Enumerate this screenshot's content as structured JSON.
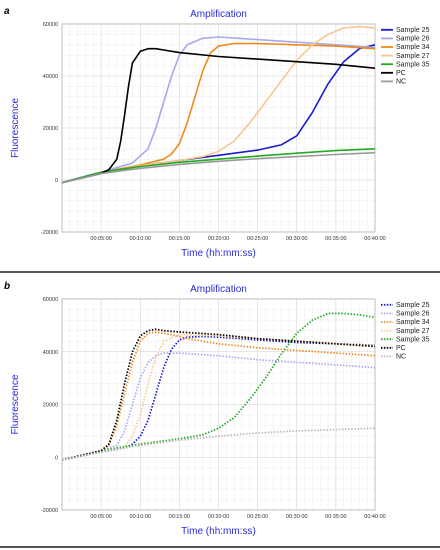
{
  "chart_data": [
    {
      "panel_label": "a",
      "type": "line",
      "title": "Amplification",
      "xlabel": "Time (hh:mm:ss)",
      "ylabel": "Fluorescence",
      "x_unit": "minutes",
      "xlim": [
        0,
        40
      ],
      "ylim": [
        -20000,
        60000
      ],
      "x_ticks": [
        "00:05:00",
        "00:10:00",
        "00:15:00",
        "00:20:00",
        "00:25:00",
        "00:30:00",
        "00:35:00",
        "00:40:00"
      ],
      "y_ticks": [
        "60000",
        "40000",
        "20000",
        "0",
        "-20000"
      ],
      "grid": true,
      "legend_position": "right",
      "line_style": "solid",
      "series": [
        {
          "name": "Sample 25",
          "color": "#1a1acc",
          "x": [
            0,
            5,
            10,
            15,
            20,
            25,
            28,
            30,
            32,
            34,
            36,
            38,
            40
          ],
          "y": [
            -1000,
            2500,
            5500,
            7500,
            9500,
            11500,
            13500,
            17000,
            26000,
            37000,
            45500,
            50500,
            52000
          ]
        },
        {
          "name": "Sample 26",
          "color": "#a8a8ee",
          "x": [
            0,
            5,
            9,
            11,
            12,
            13,
            14,
            15,
            16,
            18,
            20,
            25,
            30,
            35,
            40
          ],
          "y": [
            -1000,
            3000,
            6500,
            12000,
            20000,
            30000,
            40000,
            48000,
            52000,
            54500,
            55000,
            54000,
            53000,
            52000,
            51000
          ]
        },
        {
          "name": "Sample 34",
          "color": "#f08a1c",
          "x": [
            0,
            5,
            10,
            13,
            14,
            15,
            16,
            17,
            18,
            19,
            20,
            22,
            25,
            30,
            35,
            40
          ],
          "y": [
            -1000,
            2800,
            5800,
            8000,
            10000,
            14000,
            22000,
            32000,
            42000,
            49000,
            51500,
            52500,
            52500,
            52000,
            51500,
            50500
          ]
        },
        {
          "name": "Sample 27",
          "color": "#f8c890",
          "x": [
            0,
            5,
            10,
            15,
            18,
            20,
            22,
            24,
            26,
            28,
            30,
            32,
            34,
            36,
            38,
            40
          ],
          "y": [
            -1000,
            2500,
            5500,
            7500,
            9000,
            11000,
            15000,
            22000,
            30000,
            38000,
            46000,
            52000,
            56000,
            58500,
            59000,
            58500
          ]
        },
        {
          "name": "Sample 35",
          "color": "#22aa22",
          "x": [
            0,
            5,
            10,
            15,
            20,
            25,
            30,
            35,
            40
          ],
          "y": [
            -1000,
            3000,
            5200,
            6800,
            8000,
            9200,
            10300,
            11300,
            12000
          ]
        },
        {
          "name": "PC",
          "color": "#000000",
          "x": [
            0,
            5,
            6,
            7,
            7.5,
            8,
            8.5,
            9,
            10,
            11,
            12,
            13,
            15,
            20,
            25,
            30,
            35,
            40
          ],
          "y": [
            -1000,
            2500,
            4000,
            8000,
            15000,
            25000,
            36000,
            45000,
            49500,
            50500,
            50500,
            50000,
            49000,
            47500,
            46500,
            45500,
            44500,
            43000
          ]
        },
        {
          "name": "NC",
          "color": "#9a9a9a",
          "x": [
            0,
            5,
            10,
            15,
            20,
            25,
            30,
            35,
            40
          ],
          "y": [
            -1000,
            2500,
            4500,
            6000,
            7200,
            8200,
            9000,
            9800,
            10500
          ]
        }
      ]
    },
    {
      "panel_label": "b",
      "type": "line",
      "title": "Amplification",
      "xlabel": "Time (hh:mm:ss)",
      "ylabel": "Fluorescence",
      "x_unit": "minutes",
      "xlim": [
        0,
        40
      ],
      "ylim": [
        -20000,
        60000
      ],
      "x_ticks": [
        "00:05:00",
        "00:10:00",
        "00:15:00",
        "00:20:00",
        "00:25:00",
        "00:30:00",
        "00:35:00",
        "00:40:00"
      ],
      "y_ticks": [
        "60000",
        "40000",
        "20000",
        "0",
        "-20000"
      ],
      "grid": true,
      "legend_position": "right",
      "line_style": "dotted",
      "series": [
        {
          "name": "Sample 25",
          "color": "#1a1acc",
          "x": [
            0,
            5,
            8,
            9,
            10,
            11,
            12,
            13,
            14,
            15,
            16,
            18,
            20,
            25,
            30,
            35,
            40
          ],
          "y": [
            -1000,
            2000,
            3500,
            5000,
            8000,
            14000,
            24000,
            34000,
            41000,
            44500,
            45500,
            45800,
            45500,
            44500,
            43500,
            43000,
            42500
          ]
        },
        {
          "name": "Sample 26",
          "color": "#a8a8ee",
          "x": [
            0,
            5,
            7,
            8,
            9,
            10,
            11,
            12,
            13,
            15,
            20,
            25,
            30,
            35,
            40
          ],
          "y": [
            -1000,
            2500,
            4500,
            10000,
            20000,
            30000,
            36000,
            38500,
            39500,
            39500,
            38500,
            37000,
            36000,
            35000,
            34000
          ]
        },
        {
          "name": "Sample 34",
          "color": "#f08a1c",
          "x": [
            0,
            5,
            6,
            7,
            8,
            9,
            10,
            11,
            12,
            14,
            16,
            20,
            25,
            30,
            35,
            40
          ],
          "y": [
            -1000,
            2500,
            4500,
            12000,
            24000,
            36000,
            44000,
            47000,
            47500,
            46500,
            45000,
            43000,
            41500,
            40500,
            39500,
            38500
          ]
        },
        {
          "name": "Sample 27",
          "color": "#f8c890",
          "x": [
            0,
            5,
            8,
            9,
            10,
            11,
            12,
            13,
            15,
            20,
            25,
            30,
            35,
            40
          ],
          "y": [
            -1000,
            2500,
            4000,
            8000,
            16000,
            28000,
            38000,
            44000,
            46500,
            46000,
            45000,
            44000,
            43000,
            42500
          ]
        },
        {
          "name": "Sample 35",
          "color": "#22aa22",
          "x": [
            0,
            5,
            10,
            15,
            18,
            20,
            22,
            24,
            26,
            28,
            30,
            32,
            34,
            36,
            38,
            40
          ],
          "y": [
            -1000,
            2500,
            5000,
            7000,
            8500,
            11000,
            15000,
            22000,
            30000,
            39000,
            47000,
            52000,
            54500,
            54500,
            54000,
            53000
          ]
        },
        {
          "name": "PC",
          "color": "#000000",
          "x": [
            0,
            5,
            6,
            7,
            8,
            9,
            10,
            11,
            12,
            13,
            15,
            20,
            25,
            30,
            35,
            40
          ],
          "y": [
            -1000,
            2500,
            5000,
            14000,
            28000,
            40000,
            46000,
            48000,
            48500,
            48000,
            47500,
            46500,
            45000,
            44000,
            43000,
            42000
          ]
        },
        {
          "name": "NC",
          "color": "#b8b8b8",
          "x": [
            0,
            5,
            10,
            15,
            20,
            25,
            30,
            35,
            40
          ],
          "y": [
            -1000,
            2000,
            4500,
            6500,
            8000,
            9200,
            10000,
            10500,
            11000
          ]
        }
      ]
    }
  ]
}
